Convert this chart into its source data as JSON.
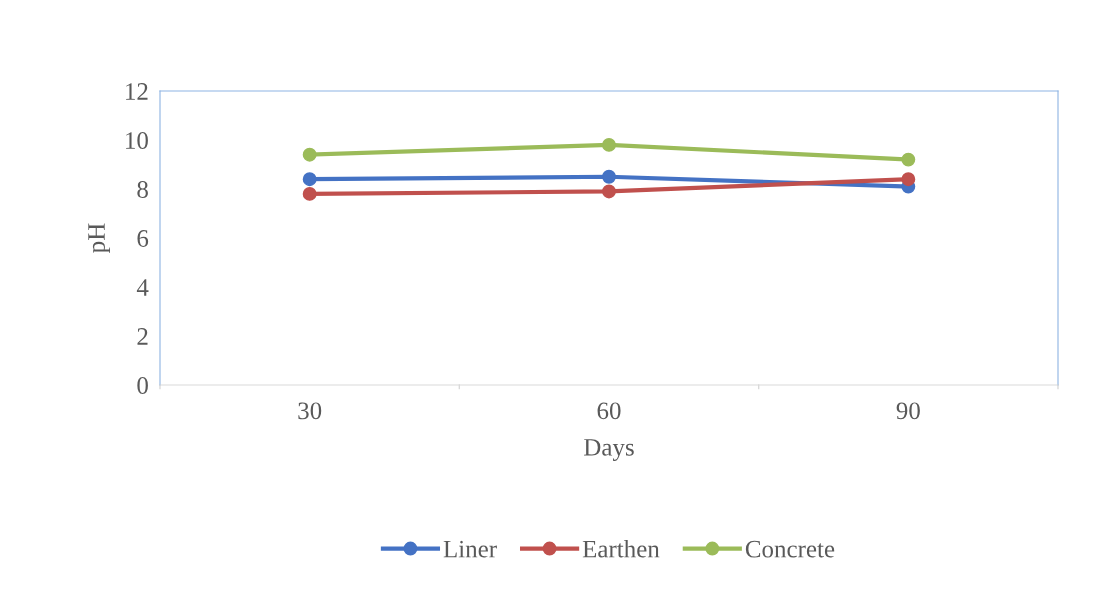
{
  "chart_data": {
    "type": "line",
    "xlabel": "Days",
    "ylabel": "pH",
    "categories": [
      "30",
      "60",
      "90"
    ],
    "series": [
      {
        "name": "Liner",
        "color": "#4472c4",
        "values": [
          8.4,
          8.5,
          8.1
        ]
      },
      {
        "name": "Earthen",
        "color": "#c0504d",
        "values": [
          7.8,
          7.9,
          8.4
        ]
      },
      {
        "name": "Concrete",
        "color": "#9bbb59",
        "values": [
          9.4,
          9.8,
          9.2
        ]
      }
    ],
    "ylim": [
      0,
      12
    ],
    "yticks": [
      0,
      2,
      4,
      6,
      8,
      10,
      12
    ],
    "grid": false,
    "legend": "bottom",
    "marker": "circle",
    "line_style": "solid"
  }
}
